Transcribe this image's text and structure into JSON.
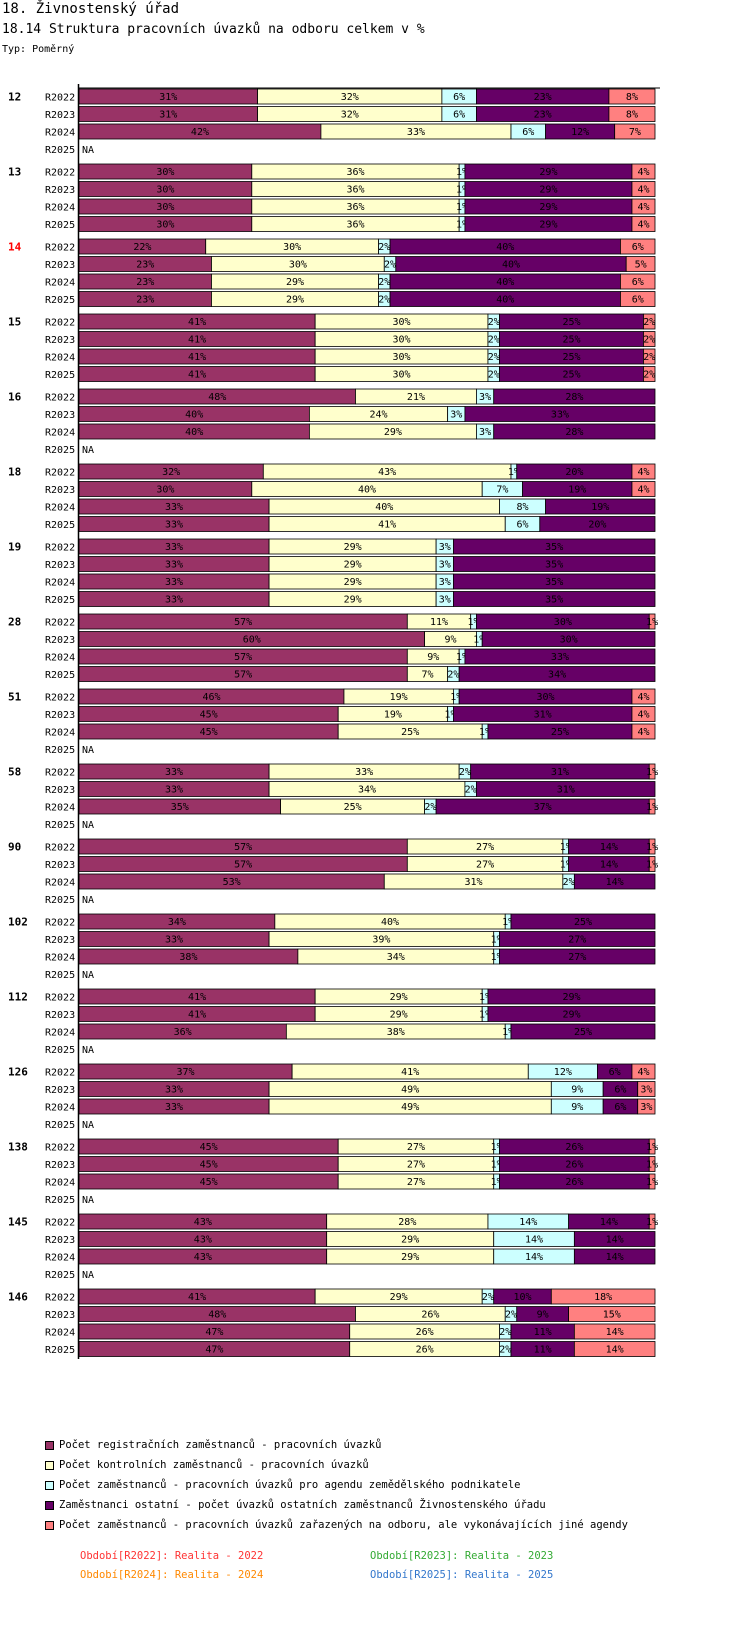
{
  "section_title": "18. Živnostenský úřad",
  "chart_title": "18.14 Struktura pracovních úvazků na odboru celkem v %",
  "type_label": "Typ: Poměrný",
  "chart_data": {
    "type": "stacked-bar-horizontal-percent",
    "title": "18.14 Struktura pracovních úvazků na odboru celkem v %",
    "xlim": [
      0,
      100
    ],
    "highlighted_group": "14",
    "highlight_color": "#ff0000",
    "series": [
      {
        "name": "Počet registračních zaměstnanců - pracovních úvazků",
        "color": "#993366"
      },
      {
        "name": "Počet kontrolních zaměstnanců - pracovních úvazků",
        "color": "#ffffcc"
      },
      {
        "name": "Počet zaměstnanců - pracovních úvazků pro agendu zemědělského podnikatele",
        "color": "#ccffff"
      },
      {
        "name": "Zaměstnanci ostatní - počet úvazků ostatních zaměstnanců Živnostenského úřadu",
        "color": "#660066"
      },
      {
        "name": "Počet zaměstnanců - pracovních úvazků zařazených na odboru, ale vykonávajících jiné agendy",
        "color": "#ff8080"
      }
    ],
    "groups": [
      {
        "label": "12",
        "rows": [
          {
            "period": "R2022",
            "values": [
              31,
              32,
              6,
              23,
              8
            ]
          },
          {
            "period": "R2023",
            "values": [
              31,
              32,
              6,
              23,
              8
            ]
          },
          {
            "period": "R2024",
            "values": [
              42,
              33,
              6,
              12,
              7
            ]
          },
          {
            "period": "R2025",
            "values": null
          }
        ]
      },
      {
        "label": "13",
        "rows": [
          {
            "period": "R2022",
            "values": [
              30,
              36,
              1,
              29,
              4
            ]
          },
          {
            "period": "R2023",
            "values": [
              30,
              36,
              1,
              29,
              4
            ]
          },
          {
            "period": "R2024",
            "values": [
              30,
              36,
              1,
              29,
              4
            ]
          },
          {
            "period": "R2025",
            "values": [
              30,
              36,
              1,
              29,
              4
            ]
          }
        ]
      },
      {
        "label": "14",
        "rows": [
          {
            "period": "R2022",
            "values": [
              22,
              30,
              2,
              40,
              6
            ]
          },
          {
            "period": "R2023",
            "values": [
              23,
              30,
              2,
              40,
              5
            ]
          },
          {
            "period": "R2024",
            "values": [
              23,
              29,
              2,
              40,
              6
            ]
          },
          {
            "period": "R2025",
            "values": [
              23,
              29,
              2,
              40,
              6
            ]
          }
        ]
      },
      {
        "label": "15",
        "rows": [
          {
            "period": "R2022",
            "values": [
              41,
              30,
              2,
              25,
              2
            ]
          },
          {
            "period": "R2023",
            "values": [
              41,
              30,
              2,
              25,
              2
            ]
          },
          {
            "period": "R2024",
            "values": [
              41,
              30,
              2,
              25,
              2
            ]
          },
          {
            "period": "R2025",
            "values": [
              41,
              30,
              2,
              25,
              2
            ]
          }
        ]
      },
      {
        "label": "16",
        "rows": [
          {
            "period": "R2022",
            "values": [
              48,
              21,
              3,
              28,
              0
            ]
          },
          {
            "period": "R2023",
            "values": [
              40,
              24,
              3,
              33,
              0
            ]
          },
          {
            "period": "R2024",
            "values": [
              40,
              29,
              3,
              28,
              0
            ]
          },
          {
            "period": "R2025",
            "values": null
          }
        ]
      },
      {
        "label": "18",
        "rows": [
          {
            "period": "R2022",
            "values": [
              32,
              43,
              1,
              20,
              4
            ]
          },
          {
            "period": "R2023",
            "values": [
              30,
              40,
              7,
              19,
              4
            ]
          },
          {
            "period": "R2024",
            "values": [
              33,
              40,
              8,
              19,
              0
            ]
          },
          {
            "period": "R2025",
            "values": [
              33,
              41,
              6,
              20,
              0
            ]
          }
        ]
      },
      {
        "label": "19",
        "rows": [
          {
            "period": "R2022",
            "values": [
              33,
              29,
              3,
              35,
              0
            ]
          },
          {
            "period": "R2023",
            "values": [
              33,
              29,
              3,
              35,
              0
            ]
          },
          {
            "period": "R2024",
            "values": [
              33,
              29,
              3,
              35,
              0
            ]
          },
          {
            "period": "R2025",
            "values": [
              33,
              29,
              3,
              35,
              0
            ]
          }
        ]
      },
      {
        "label": "28",
        "rows": [
          {
            "period": "R2022",
            "values": [
              57,
              11,
              1,
              30,
              1
            ]
          },
          {
            "period": "R2023",
            "values": [
              60,
              9,
              1,
              30,
              0
            ]
          },
          {
            "period": "R2024",
            "values": [
              57,
              9,
              1,
              33,
              0
            ]
          },
          {
            "period": "R2025",
            "values": [
              57,
              7,
              2,
              34,
              0
            ]
          }
        ]
      },
      {
        "label": "51",
        "rows": [
          {
            "period": "R2022",
            "values": [
              46,
              19,
              1,
              30,
              4
            ]
          },
          {
            "period": "R2023",
            "values": [
              45,
              19,
              1,
              31,
              4
            ]
          },
          {
            "period": "R2024",
            "values": [
              45,
              25,
              1,
              25,
              4
            ]
          },
          {
            "period": "R2025",
            "values": null
          }
        ]
      },
      {
        "label": "58",
        "rows": [
          {
            "period": "R2022",
            "values": [
              33,
              33,
              2,
              31,
              1
            ]
          },
          {
            "period": "R2023",
            "values": [
              33,
              34,
              2,
              31,
              0
            ]
          },
          {
            "period": "R2024",
            "values": [
              35,
              25,
              2,
              37,
              1
            ]
          },
          {
            "period": "R2025",
            "values": null
          }
        ]
      },
      {
        "label": "90",
        "rows": [
          {
            "period": "R2022",
            "values": [
              57,
              27,
              1,
              14,
              1
            ]
          },
          {
            "period": "R2023",
            "values": [
              57,
              27,
              1,
              14,
              1
            ]
          },
          {
            "period": "R2024",
            "values": [
              53,
              31,
              2,
              14,
              0
            ]
          },
          {
            "period": "R2025",
            "values": null
          }
        ]
      },
      {
        "label": "102",
        "rows": [
          {
            "period": "R2022",
            "values": [
              34,
              40,
              1,
              25,
              0
            ]
          },
          {
            "period": "R2023",
            "values": [
              33,
              39,
              1,
              27,
              0
            ]
          },
          {
            "period": "R2024",
            "values": [
              38,
              34,
              1,
              27,
              0
            ]
          },
          {
            "period": "R2025",
            "values": null
          }
        ]
      },
      {
        "label": "112",
        "rows": [
          {
            "period": "R2022",
            "values": [
              41,
              29,
              1,
              29,
              0
            ]
          },
          {
            "period": "R2023",
            "values": [
              41,
              29,
              1,
              29,
              0
            ]
          },
          {
            "period": "R2024",
            "values": [
              36,
              38,
              1,
              25,
              0
            ]
          },
          {
            "period": "R2025",
            "values": null
          }
        ]
      },
      {
        "label": "126",
        "rows": [
          {
            "period": "R2022",
            "values": [
              37,
              41,
              12,
              6,
              4
            ]
          },
          {
            "period": "R2023",
            "values": [
              33,
              49,
              9,
              6,
              3
            ]
          },
          {
            "period": "R2024",
            "values": [
              33,
              49,
              9,
              6,
              3
            ]
          },
          {
            "period": "R2025",
            "values": null
          }
        ]
      },
      {
        "label": "138",
        "rows": [
          {
            "period": "R2022",
            "values": [
              45,
              27,
              1,
              26,
              1
            ]
          },
          {
            "period": "R2023",
            "values": [
              45,
              27,
              1,
              26,
              1
            ]
          },
          {
            "period": "R2024",
            "values": [
              45,
              27,
              1,
              26,
              1
            ]
          },
          {
            "period": "R2025",
            "values": null
          }
        ]
      },
      {
        "label": "145",
        "rows": [
          {
            "period": "R2022",
            "values": [
              43,
              28,
              14,
              14,
              1
            ]
          },
          {
            "period": "R2023",
            "values": [
              43,
              29,
              14,
              14,
              0
            ]
          },
          {
            "period": "R2024",
            "values": [
              43,
              29,
              14,
              14,
              0
            ]
          },
          {
            "period": "R2025",
            "values": null
          }
        ]
      },
      {
        "label": "146",
        "rows": [
          {
            "period": "R2022",
            "values": [
              41,
              29,
              2,
              10,
              18
            ]
          },
          {
            "period": "R2023",
            "values": [
              48,
              26,
              2,
              9,
              15
            ]
          },
          {
            "period": "R2024",
            "values": [
              47,
              26,
              2,
              11,
              14
            ]
          },
          {
            "period": "R2025",
            "values": [
              47,
              26,
              2,
              11,
              14
            ]
          }
        ]
      }
    ],
    "na_label": "NA",
    "label_suffix": "%"
  },
  "legend": {
    "items": [
      {
        "label": "Počet registračních zaměstnanců - pracovních úvazků",
        "color": "#993366"
      },
      {
        "label": "Počet kontrolních zaměstnanců - pracovních úvazků",
        "color": "#ffffcc"
      },
      {
        "label": "Počet zaměstnanců - pracovních úvazků pro agendu zemědělského podnikatele",
        "color": "#ccffff"
      },
      {
        "label": "Zaměstnanci ostatní - počet úvazků ostatních zaměstnanců Živnostenského úřadu",
        "color": "#660066"
      },
      {
        "label": "Počet zaměstnanců - pracovních úvazků zařazených na odboru, ale vykonávajících jiné agendy",
        "color": "#ff8080"
      }
    ]
  },
  "periods": {
    "p2022": {
      "text": "Období[R2022]: Realita - 2022",
      "color": "#ff3333"
    },
    "p2023": {
      "text": "Období[R2023]: Realita - 2023",
      "color": "#33aa33"
    },
    "p2024": {
      "text": "Období[R2024]: Realita - 2024",
      "color": "#ff8800"
    },
    "p2025": {
      "text": "Období[R2025]: Realita - 2025",
      "color": "#3377cc"
    }
  }
}
